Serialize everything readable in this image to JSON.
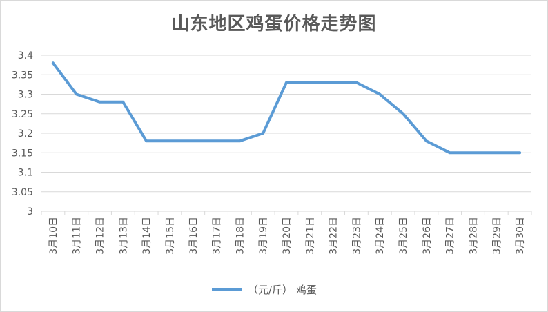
{
  "chart_data": {
    "type": "line",
    "title": "山东地区鸡蛋价格走势图",
    "categories": [
      "3月10日",
      "3月11日",
      "3月12日",
      "3月13日",
      "3月14日",
      "3月15日",
      "3月16日",
      "3月17日",
      "3月18日",
      "3月19日",
      "3月20日",
      "3月21日",
      "3月22日",
      "3月23日",
      "3月24日",
      "3月25日",
      "3月26日",
      "3月27日",
      "3月28日",
      "3月29日",
      "3月30日"
    ],
    "series": [
      {
        "name": "（元/斤） 鸡蛋",
        "color": "#5b9bd5",
        "values": [
          3.38,
          3.3,
          3.28,
          3.28,
          3.18,
          3.18,
          3.18,
          3.18,
          3.18,
          3.2,
          3.33,
          3.33,
          3.33,
          3.33,
          3.3,
          3.25,
          3.18,
          3.15,
          3.15,
          3.15,
          3.15
        ]
      }
    ],
    "ylim": [
      3.0,
      3.4
    ],
    "yticks": [
      "3",
      "3.05",
      "3.1",
      "3.15",
      "3.2",
      "3.25",
      "3.3",
      "3.35",
      "3.4"
    ],
    "grid": true,
    "legend": "bottom-center",
    "colors": {
      "gridline": "#d9d9d9",
      "axis_text": "#595959"
    }
  }
}
